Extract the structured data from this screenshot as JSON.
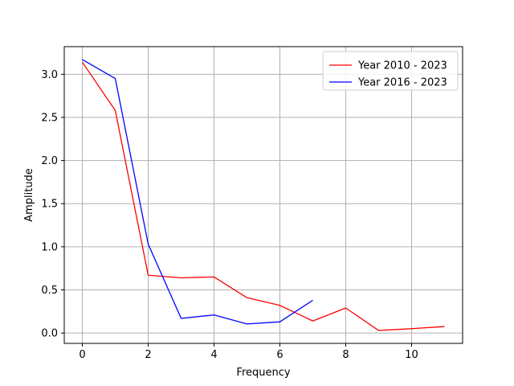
{
  "chart_data": {
    "type": "line",
    "title": "",
    "xlabel": "Frequency",
    "ylabel": "Amplitude",
    "xlim": [
      -0.55,
      11.55
    ],
    "ylim": [
      -0.12,
      3.32
    ],
    "xticks": [
      0,
      2,
      4,
      6,
      8,
      10
    ],
    "yticks": [
      0.0,
      0.5,
      1.0,
      1.5,
      2.0,
      2.5,
      3.0
    ],
    "xtick_labels": [
      "0",
      "2",
      "4",
      "6",
      "8",
      "10"
    ],
    "ytick_labels": [
      "0.0",
      "0.5",
      "1.0",
      "1.5",
      "2.0",
      "2.5",
      "3.0"
    ],
    "grid": true,
    "legend_position": "top-right",
    "series": [
      {
        "name": "Year 2010 - 2023",
        "color": "#ff0000",
        "x": [
          0,
          1,
          2,
          3,
          4,
          5,
          6,
          7,
          8,
          9,
          10,
          11
        ],
        "y": [
          3.14,
          2.58,
          0.67,
          0.64,
          0.65,
          0.41,
          0.32,
          0.14,
          0.29,
          0.03,
          0.05,
          0.075
        ]
      },
      {
        "name": "Year 2016 - 2023",
        "color": "#0000ff",
        "x": [
          0,
          1,
          2,
          3,
          4,
          5,
          6,
          7
        ],
        "y": [
          3.17,
          2.95,
          1.03,
          0.17,
          0.21,
          0.105,
          0.13,
          0.38
        ]
      }
    ]
  }
}
